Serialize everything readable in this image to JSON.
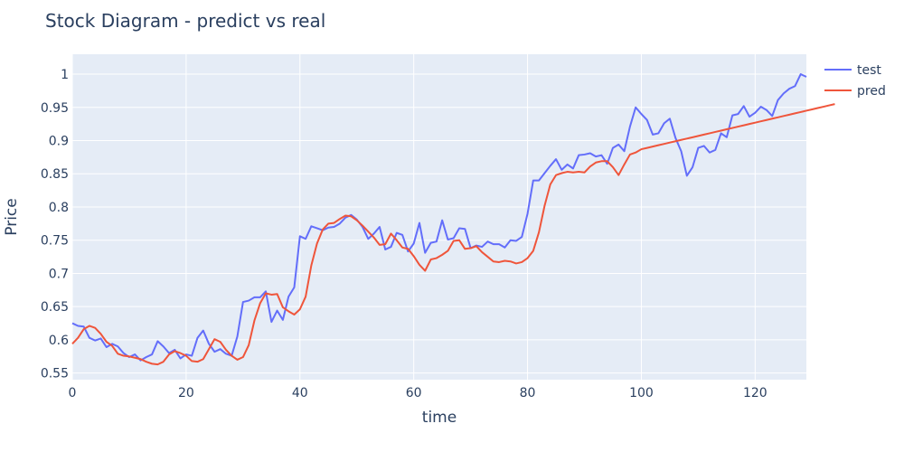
{
  "chart_data": {
    "type": "line",
    "title": "Stock Diagram - predict vs real",
    "xlabel": "time",
    "ylabel": "Price",
    "xlim": [
      0,
      129
    ],
    "ylim": [
      0.54,
      1.03
    ],
    "x_ticks": [
      0,
      20,
      40,
      60,
      80,
      100,
      120
    ],
    "y_ticks": [
      0.55,
      0.6,
      0.65,
      0.7,
      0.75,
      0.8,
      0.85,
      0.9,
      0.95,
      1
    ],
    "y_tick_labels": [
      "0.55",
      "0.6",
      "0.65",
      "0.7",
      "0.75",
      "0.8",
      "0.85",
      "0.9",
      "0.95",
      "1"
    ],
    "grid": true,
    "legend_position": "top-right",
    "series": [
      {
        "name": "test",
        "color": "#636efa",
        "values": [
          0.625,
          0.621,
          0.62,
          0.603,
          0.599,
          0.602,
          0.589,
          0.594,
          0.59,
          0.58,
          0.574,
          0.578,
          0.569,
          0.574,
          0.578,
          0.598,
          0.59,
          0.58,
          0.585,
          0.572,
          0.578,
          0.576,
          0.603,
          0.614,
          0.594,
          0.582,
          0.586,
          0.579,
          0.576,
          0.605,
          0.657,
          0.659,
          0.664,
          0.664,
          0.673,
          0.627,
          0.644,
          0.63,
          0.665,
          0.679,
          0.756,
          0.752,
          0.771,
          0.768,
          0.765,
          0.769,
          0.77,
          0.775,
          0.784,
          0.788,
          0.781,
          0.77,
          0.752,
          0.76,
          0.77,
          0.736,
          0.74,
          0.761,
          0.758,
          0.733,
          0.745,
          0.776,
          0.731,
          0.746,
          0.748,
          0.78,
          0.751,
          0.753,
          0.768,
          0.767,
          0.738,
          0.742,
          0.74,
          0.748,
          0.744,
          0.744,
          0.739,
          0.75,
          0.749,
          0.755,
          0.79,
          0.84,
          0.84,
          0.851,
          0.862,
          0.872,
          0.856,
          0.864,
          0.858,
          0.878,
          0.879,
          0.881,
          0.876,
          0.878,
          0.865,
          0.889,
          0.894,
          0.884,
          0.921,
          0.95,
          0.94,
          0.931,
          0.909,
          0.911,
          0.926,
          0.933,
          0.904,
          0.884,
          0.847,
          0.86,
          0.889,
          0.892,
          0.882,
          0.886,
          0.911,
          0.905,
          0.938,
          0.94,
          0.952,
          0.936,
          0.942,
          0.951,
          0.946,
          0.937,
          0.961,
          0.971,
          0.978,
          0.982,
          1.0,
          0.996
        ]
      },
      {
        "name": "pred",
        "color": "#ef553b",
        "values": [
          0.594,
          0.603,
          0.616,
          0.621,
          0.618,
          0.609,
          0.597,
          0.591,
          0.579,
          0.576,
          0.575,
          0.573,
          0.571,
          0.567,
          0.564,
          0.563,
          0.567,
          0.578,
          0.583,
          0.58,
          0.576,
          0.568,
          0.567,
          0.571,
          0.586,
          0.601,
          0.597,
          0.585,
          0.576,
          0.57,
          0.574,
          0.592,
          0.629,
          0.655,
          0.67,
          0.668,
          0.669,
          0.649,
          0.643,
          0.638,
          0.646,
          0.665,
          0.712,
          0.745,
          0.766,
          0.775,
          0.776,
          0.782,
          0.787,
          0.786,
          0.78,
          0.772,
          0.763,
          0.754,
          0.743,
          0.744,
          0.76,
          0.75,
          0.739,
          0.737,
          0.726,
          0.713,
          0.704,
          0.721,
          0.723,
          0.728,
          0.734,
          0.749,
          0.75,
          0.737,
          0.738,
          0.741,
          0.732,
          0.725,
          0.718,
          0.717,
          0.719,
          0.718,
          0.715,
          0.717,
          0.723,
          0.734,
          0.762,
          0.802,
          0.834,
          0.848,
          0.851,
          0.853,
          0.852,
          0.853,
          0.852,
          0.861,
          0.867,
          0.869,
          0.869,
          0.86,
          0.848,
          0.864,
          0.879,
          0.882,
          0.887,
          0.889,
          0.891,
          0.893,
          0.895,
          0.897,
          0.899,
          0.901,
          0.903,
          0.905,
          0.907,
          0.909,
          0.911,
          0.913,
          0.915,
          0.917,
          0.919,
          0.921,
          0.923,
          0.925,
          0.927,
          0.929,
          0.931,
          0.933,
          0.935,
          0.937,
          0.939,
          0.941,
          0.943,
          0.945,
          0.947,
          0.949,
          0.951,
          0.953,
          0.955
        ]
      }
    ]
  }
}
